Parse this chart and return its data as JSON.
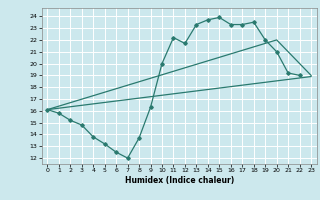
{
  "xlabel": "Humidex (Indice chaleur)",
  "bg_color": "#cce8ed",
  "grid_color": "#ffffff",
  "line_color": "#2a7a6f",
  "xlim": [
    -0.5,
    23.5
  ],
  "ylim": [
    11.5,
    24.7
  ],
  "yticks": [
    12,
    13,
    14,
    15,
    16,
    17,
    18,
    19,
    20,
    21,
    22,
    23,
    24
  ],
  "xticks": [
    0,
    1,
    2,
    3,
    4,
    5,
    6,
    7,
    8,
    9,
    10,
    11,
    12,
    13,
    14,
    15,
    16,
    17,
    18,
    19,
    20,
    21,
    22,
    23
  ],
  "line1_x": [
    0,
    1,
    2,
    3,
    4,
    5,
    6,
    7,
    8,
    9,
    10,
    11,
    12,
    13,
    14,
    15,
    16,
    17,
    18,
    19,
    20,
    21,
    22
  ],
  "line1_y": [
    16.1,
    15.8,
    15.2,
    14.8,
    13.8,
    13.2,
    12.5,
    12.0,
    13.7,
    16.3,
    20.0,
    22.2,
    21.7,
    23.3,
    23.7,
    23.9,
    23.3,
    23.3,
    23.5,
    22.0,
    21.0,
    19.2,
    19.0
  ],
  "line2_x": [
    0,
    23
  ],
  "line2_y": [
    16.1,
    18.9
  ],
  "line3_x": [
    0,
    20,
    23
  ],
  "line3_y": [
    16.1,
    22.0,
    19.0
  ]
}
